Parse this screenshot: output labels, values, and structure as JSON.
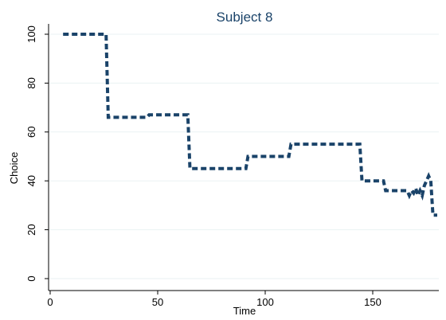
{
  "chart_data": {
    "type": "line",
    "title": "Subject 8",
    "xlabel": "Time",
    "ylabel": "Choice",
    "xlim": [
      0,
      180
    ],
    "ylim": [
      0,
      100
    ],
    "xticks": [
      0,
      50,
      100,
      150
    ],
    "yticks": [
      0,
      20,
      40,
      60,
      80,
      100
    ],
    "grid": true,
    "legend": "none",
    "line_style": "dashed",
    "color": "#1a4369",
    "series": [
      {
        "x": [
          6,
          26,
          27,
          45,
          46,
          64,
          65,
          91,
          92,
          111,
          112,
          144,
          145,
          155,
          156,
          166,
          167,
          168,
          169,
          170,
          171,
          172,
          173,
          174,
          175,
          176,
          177,
          178,
          179,
          180
        ],
        "y": [
          100,
          100,
          66,
          66,
          67,
          67,
          45,
          45,
          50,
          50,
          55,
          55,
          40,
          40,
          36,
          36,
          34,
          36,
          35,
          37,
          34,
          36,
          34,
          38,
          40,
          42,
          40,
          26,
          26,
          26
        ]
      }
    ]
  }
}
